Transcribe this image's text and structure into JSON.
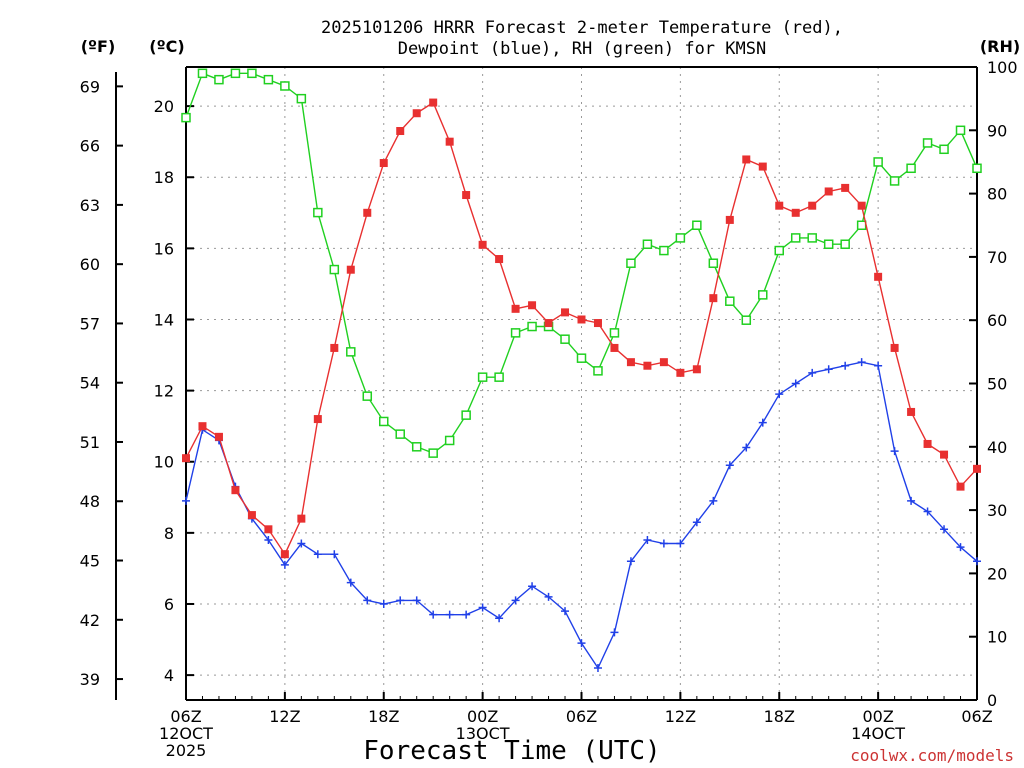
{
  "chart_data": {
    "type": "line",
    "title_line1": "2025101206 HRRR Forecast 2-meter Temperature (red),",
    "title_line2": "Dewpoint (blue), RH (green) for KMSN",
    "xlabel": "Forecast Time (UTC)",
    "credit": "coolwx.com/models",
    "unit_f": "(ºF)",
    "unit_c": "(ºC)",
    "unit_rh": "(RH)",
    "x_range_hours": [
      0,
      48
    ],
    "ylim_c": [
      3.3,
      21.1
    ],
    "ylim_rh": [
      0,
      100
    ],
    "grid": true,
    "x_ticks": [
      {
        "hour": 0,
        "lines": [
          "06Z",
          "12OCT",
          "2025"
        ]
      },
      {
        "hour": 6,
        "lines": [
          "12Z"
        ]
      },
      {
        "hour": 12,
        "lines": [
          "18Z"
        ]
      },
      {
        "hour": 18,
        "lines": [
          "00Z",
          "13OCT"
        ]
      },
      {
        "hour": 24,
        "lines": [
          "06Z"
        ]
      },
      {
        "hour": 30,
        "lines": [
          "12Z"
        ]
      },
      {
        "hour": 36,
        "lines": [
          "18Z"
        ]
      },
      {
        "hour": 42,
        "lines": [
          "00Z",
          "14OCT"
        ]
      },
      {
        "hour": 48,
        "lines": [
          "06Z"
        ]
      }
    ],
    "y_ticks_c": [
      4,
      6,
      8,
      10,
      12,
      14,
      16,
      18,
      20
    ],
    "y_ticks_f": [
      39,
      42,
      45,
      48,
      51,
      54,
      57,
      60,
      63,
      66,
      69
    ],
    "y_ticks_rh": [
      0,
      10,
      20,
      30,
      40,
      50,
      60,
      70,
      80,
      90,
      100
    ],
    "series": [
      {
        "name": "Temperature (red)",
        "axis": "c",
        "color": "#e83030",
        "marker": "filled-square",
        "values": [
          10.1,
          11.0,
          10.7,
          9.2,
          8.5,
          8.1,
          7.4,
          8.4,
          11.2,
          13.2,
          15.4,
          17.0,
          18.4,
          19.3,
          19.8,
          20.1,
          19.0,
          17.5,
          16.1,
          15.7,
          14.3,
          14.4,
          13.9,
          14.2,
          14.0,
          13.9,
          13.2,
          12.8,
          12.7,
          12.8,
          12.5,
          12.6,
          14.6,
          16.8,
          18.5,
          18.3,
          17.2,
          17.0,
          17.2,
          17.6,
          17.7,
          17.2,
          15.2,
          13.2,
          11.4,
          10.5,
          10.2,
          9.3,
          9.8
        ]
      },
      {
        "name": "Dewpoint (blue)",
        "axis": "c",
        "color": "#2040e8",
        "marker": "plus",
        "values": [
          8.9,
          10.9,
          10.6,
          9.3,
          8.4,
          7.8,
          7.1,
          7.7,
          7.4,
          7.4,
          6.6,
          6.1,
          6.0,
          6.1,
          6.1,
          5.7,
          5.7,
          5.7,
          5.9,
          5.6,
          6.1,
          6.5,
          6.2,
          5.8,
          4.9,
          4.2,
          5.2,
          7.2,
          7.8,
          7.7,
          7.7,
          8.3,
          8.9,
          9.9,
          10.4,
          11.1,
          11.9,
          12.2,
          12.5,
          12.6,
          12.7,
          12.8,
          12.7,
          10.3,
          8.9,
          8.6,
          8.1,
          7.6,
          7.2
        ]
      },
      {
        "name": "RH (green)",
        "axis": "rh",
        "color": "#20d020",
        "marker": "open-square",
        "values": [
          92,
          99,
          98,
          99,
          99,
          98,
          97,
          95,
          77,
          68,
          55,
          48,
          44,
          42,
          40,
          39,
          41,
          45,
          51,
          51,
          58,
          59,
          59,
          57,
          54,
          52,
          58,
          69,
          72,
          71,
          73,
          75,
          69,
          63,
          60,
          64,
          71,
          73,
          73,
          72,
          72,
          75,
          85,
          82,
          84,
          88,
          87,
          90,
          84
        ]
      }
    ]
  }
}
